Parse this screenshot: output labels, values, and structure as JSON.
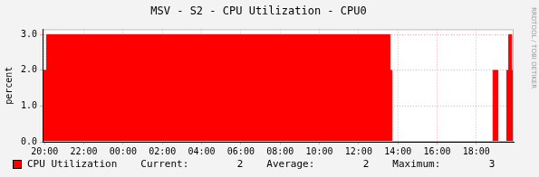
{
  "chart_data": {
    "type": "area",
    "title": "MSV - S2 - CPU Utilization - CPU0",
    "y_label": "percent",
    "x": [
      -0.1,
      0.1,
      17.6,
      17.7,
      22.85,
      23.1,
      23.55,
      23.65,
      23.8,
      23.9
    ],
    "series": [
      {
        "name": "CPU Utilization",
        "color": "#ff0000",
        "values": [
          3,
          2,
          3,
          2,
          0,
          2,
          0,
          2,
          3,
          2
        ]
      }
    ],
    "xlim": [
      -0.1,
      23.9
    ],
    "xticks": [
      {
        "value": 0,
        "label": "20:00"
      },
      {
        "value": 2,
        "label": "22:00"
      },
      {
        "value": 4,
        "label": "00:00"
      },
      {
        "value": 6,
        "label": "02:00"
      },
      {
        "value": 8,
        "label": "04:00"
      },
      {
        "value": 10,
        "label": "06:00"
      },
      {
        "value": 12,
        "label": "08:00"
      },
      {
        "value": 14,
        "label": "10:00"
      },
      {
        "value": 16,
        "label": "12:00"
      },
      {
        "value": 18,
        "label": "14:00"
      },
      {
        "value": 20,
        "label": "16:00"
      },
      {
        "value": 22,
        "label": "18:00"
      }
    ],
    "ylim": [
      0,
      3.15
    ],
    "yticks": [
      {
        "value": 0,
        "label": "0.0"
      },
      {
        "value": 1,
        "label": "1.0"
      },
      {
        "value": 2,
        "label": "2.0"
      },
      {
        "value": 3,
        "label": "3.0"
      }
    ],
    "grid": true,
    "legend": "bottom",
    "annotations": [
      {
        "label": "Current:",
        "value": 2
      },
      {
        "label": "Average:",
        "value": 2
      },
      {
        "label": "Maximum:",
        "value": 3
      }
    ],
    "side_text": "RRDTOOL / TOBI OETIKER"
  }
}
